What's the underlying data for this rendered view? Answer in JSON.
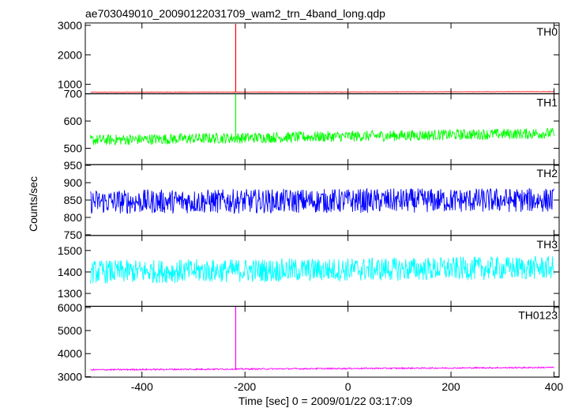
{
  "title": "ae703049010_20090122031709_wam2_trn_4band_long.qdp",
  "xlabel": "Time [sec] 0 = 2009/01/22 03:17:09",
  "ylabel": "Counts/sec",
  "x_ticks": [
    -400,
    -200,
    0,
    200,
    400
  ],
  "chart_data": {
    "type": "line",
    "title": "ae703049010_20090122031709_wam2_trn_4band_long.qdp",
    "xlabel": "Time [sec] 0 = 2009/01/22 03:17:09",
    "ylabel": "Counts/sec",
    "xlim": [
      -510,
      410
    ],
    "grid": false,
    "panels": [
      {
        "name": "TH0",
        "color": "#ff0000",
        "ylim": [
          680,
          3080
        ],
        "yticks": [
          1000,
          2000,
          3000
        ],
        "baseline": 730,
        "baseline_end": 750,
        "noise": 12,
        "spike_x": -218,
        "spike_peak": 3050
      },
      {
        "name": "TH1",
        "color": "#00ff00",
        "ylim": [
          440,
          700
        ],
        "yticks": [
          500,
          600,
          700
        ],
        "baseline": 530,
        "baseline_end": 555,
        "noise": 40,
        "spike_x": -218,
        "spike_peak": 700
      },
      {
        "name": "TH2",
        "color": "#0000ff",
        "ylim": [
          748,
          952
        ],
        "yticks": [
          750,
          800,
          850,
          900,
          950
        ],
        "baseline": 845,
        "baseline_end": 850,
        "noise": 70,
        "spike_x": null,
        "spike_peak": null
      },
      {
        "name": "TH3",
        "color": "#00ffff",
        "ylim": [
          1240,
          1570
        ],
        "yticks": [
          1300,
          1400,
          1500
        ],
        "baseline": 1400,
        "baseline_end": 1420,
        "noise": 110,
        "spike_x": null,
        "spike_peak": null
      },
      {
        "name": "TH0123",
        "color": "#ff00ff",
        "ylim": [
          2980,
          6050
        ],
        "yticks": [
          3000,
          4000,
          5000,
          6000
        ],
        "baseline": 3300,
        "baseline_end": 3400,
        "noise": 60,
        "spike_x": -218,
        "spike_peak": 6050
      }
    ]
  }
}
